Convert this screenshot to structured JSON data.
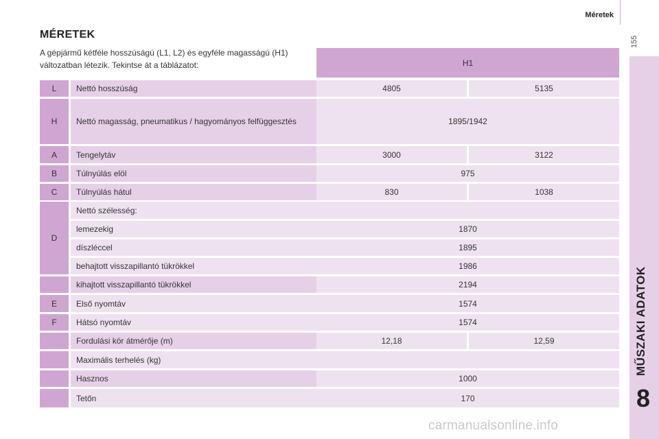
{
  "header": {
    "section": "Méretek",
    "page": "155"
  },
  "side": {
    "title": "MŰSZAKI ADATOK",
    "chapter": "8"
  },
  "title": "MÉRETEK",
  "intro": "A gépjármű kétféle hosszúságú (L1, L2) és egyféle magasságú (H1) változatban létezik. Tekintse át a táblázatot:",
  "table": {
    "column_header": "H1",
    "rows": [
      {
        "letter": "L",
        "label": "Nettó hosszúság",
        "v1": "4805",
        "v2": "5135"
      },
      {
        "letter": "H",
        "label": "Nettó magasság, pneumatikus / hagyományos felfüggesztés",
        "value": "1895/1942"
      },
      {
        "letter": "A",
        "label": "Tengelytáv",
        "v1": "3000",
        "v2": "3122"
      },
      {
        "letter": "B",
        "label": "Túlnyúlás elöl",
        "value": "975"
      },
      {
        "letter": "C",
        "label": "Túlnyúlás hátul",
        "v1": "830",
        "v2": "1038"
      },
      {
        "letter": "D",
        "label": "Nettó szélesség:",
        "value": ""
      },
      {
        "letter": "",
        "label": "lemezekig",
        "value": "1870"
      },
      {
        "letter": "",
        "label": "díszléccel",
        "value": "1895"
      },
      {
        "letter": "",
        "label": "behajtott visszapillantó tükrökkel",
        "value": "1986"
      },
      {
        "letter": "",
        "label": "kihajtott visszapillantó tükrökkel",
        "value": "2194"
      },
      {
        "letter": "E",
        "label": "Első nyomtáv",
        "value": "1574"
      },
      {
        "letter": "F",
        "label": "Hátsó nyomtáv",
        "value": "1574"
      },
      {
        "letter": "",
        "label": "Fordulási kör átmérője (m)",
        "v1": "12,18",
        "v2": "12,59"
      },
      {
        "letter": "",
        "label": "Maximális terhelés (kg)",
        "value": ""
      },
      {
        "letter": "",
        "label": "Hasznos",
        "value": "1000"
      },
      {
        "letter": "",
        "label": "Tetőn",
        "value": "170"
      }
    ]
  },
  "watermark": "carmanualsonline.info",
  "colors": {
    "dark_purple": "#cfa6d1",
    "mid_purple": "#e6d0e7",
    "light_purple": "#efe2f0"
  }
}
